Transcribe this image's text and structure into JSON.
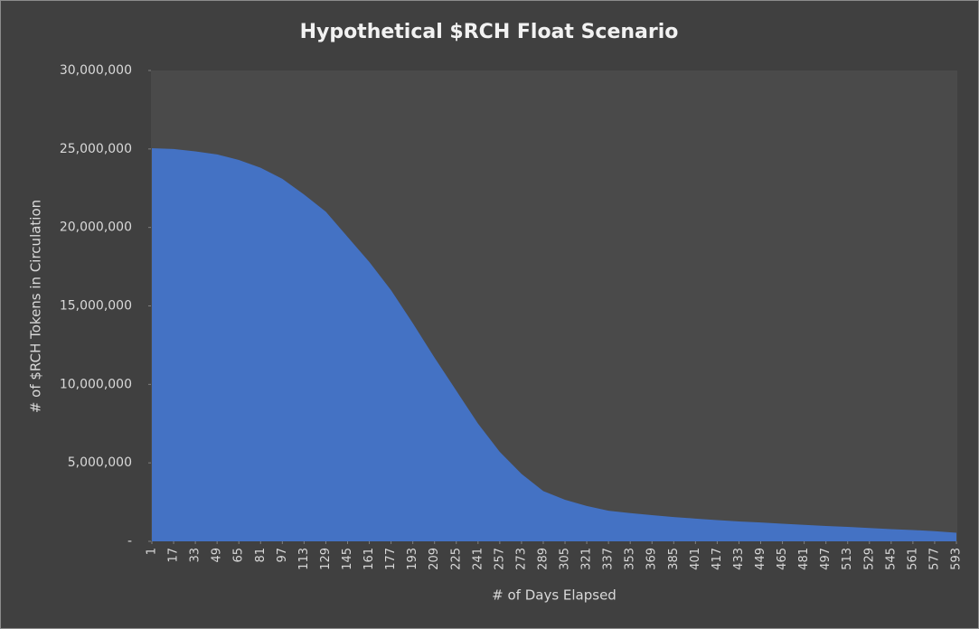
{
  "chart_data": {
    "type": "area",
    "title": "Hypothetical $RCH Float Scenario",
    "x_label": "# of Days Elapsed",
    "y_label": "# of $RCH Tokens in Circulation",
    "x": [
      1,
      17,
      33,
      49,
      65,
      81,
      97,
      113,
      129,
      145,
      161,
      177,
      193,
      209,
      225,
      241,
      257,
      273,
      289,
      305,
      321,
      337,
      353,
      369,
      385,
      401,
      417,
      433,
      449,
      465,
      481,
      497,
      513,
      529,
      545,
      561,
      577,
      593
    ],
    "series": [
      {
        "name": "Tokens in Circulation",
        "color": "#4472c4",
        "values": [
          25050000,
          25000000,
          24850000,
          24650000,
          24300000,
          23800000,
          23100000,
          22100000,
          21000000,
          19400000,
          17800000,
          16000000,
          13900000,
          11700000,
          9600000,
          7500000,
          5700000,
          4300000,
          3200000,
          2650000,
          2250000,
          1950000,
          1800000,
          1670000,
          1550000,
          1450000,
          1350000,
          1270000,
          1200000,
          1120000,
          1050000,
          980000,
          920000,
          850000,
          780000,
          720000,
          650000,
          550000
        ]
      }
    ],
    "xlim": [
      1,
      593
    ],
    "xticks": [
      1,
      17,
      33,
      49,
      65,
      81,
      97,
      113,
      129,
      145,
      161,
      177,
      193,
      209,
      225,
      241,
      257,
      273,
      289,
      305,
      321,
      337,
      353,
      369,
      385,
      401,
      417,
      433,
      449,
      465,
      481,
      497,
      513,
      529,
      545,
      561,
      577,
      593
    ],
    "ylim": [
      0,
      30000000
    ],
    "yticks": [
      {
        "value": 0,
        "label": "-"
      },
      {
        "value": 5000000,
        "label": "5,000,000"
      },
      {
        "value": 10000000,
        "label": "10,000,000"
      },
      {
        "value": 15000000,
        "label": "15,000,000"
      },
      {
        "value": 20000000,
        "label": "20,000,000"
      },
      {
        "value": 25000000,
        "label": "25,000,000"
      },
      {
        "value": 30000000,
        "label": "30,000,000"
      }
    ],
    "grid": false
  }
}
